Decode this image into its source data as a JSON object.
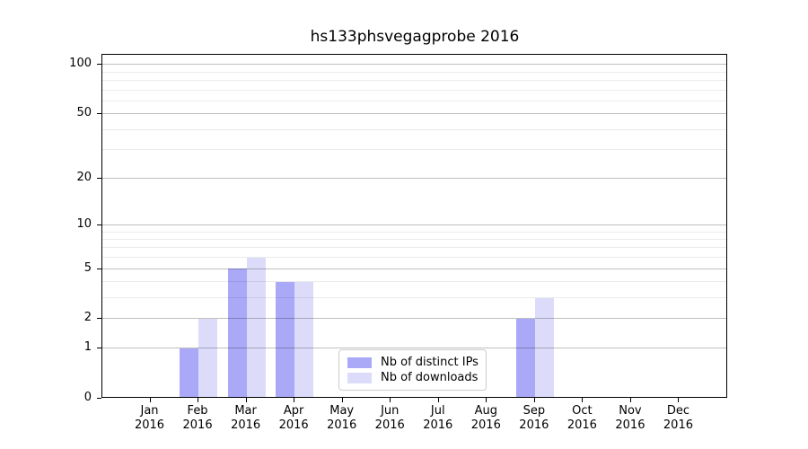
{
  "chart_data": {
    "type": "bar",
    "title": "hs133phsvegagprobe 2016",
    "categories": [
      "Jan 2016",
      "Feb 2016",
      "Mar 2016",
      "Apr 2016",
      "May 2016",
      "Jun 2016",
      "Jul 2016",
      "Aug 2016",
      "Sep 2016",
      "Oct 2016",
      "Nov 2016",
      "Dec 2016"
    ],
    "series": [
      {
        "name": "Nb of distinct IPs",
        "color": "#a9a9f7",
        "values": [
          0,
          1,
          5,
          4,
          0,
          0,
          0,
          0,
          2,
          0,
          0,
          0
        ]
      },
      {
        "name": "Nb of downloads",
        "color": "#dcdcfa",
        "values": [
          0,
          2,
          6,
          4,
          0,
          0,
          0,
          0,
          3,
          0,
          0,
          0
        ]
      }
    ],
    "yscale": "log1p",
    "ylim": [
      0,
      115
    ],
    "y_major_ticks": [
      0,
      1,
      2,
      5,
      10,
      20,
      50,
      100
    ],
    "y_minor_ticks": [
      3,
      4,
      6,
      7,
      8,
      9,
      30,
      40,
      60,
      70,
      80,
      90
    ],
    "grid": true,
    "legend_position": "lower-center"
  },
  "colors": {
    "major_grid": "rgba(0,0,0,0.25)",
    "minor_grid": "rgba(0,0,0,0.08)",
    "spine": "#000000",
    "background": "#ffffff",
    "legend_border": "#cccccc"
  }
}
